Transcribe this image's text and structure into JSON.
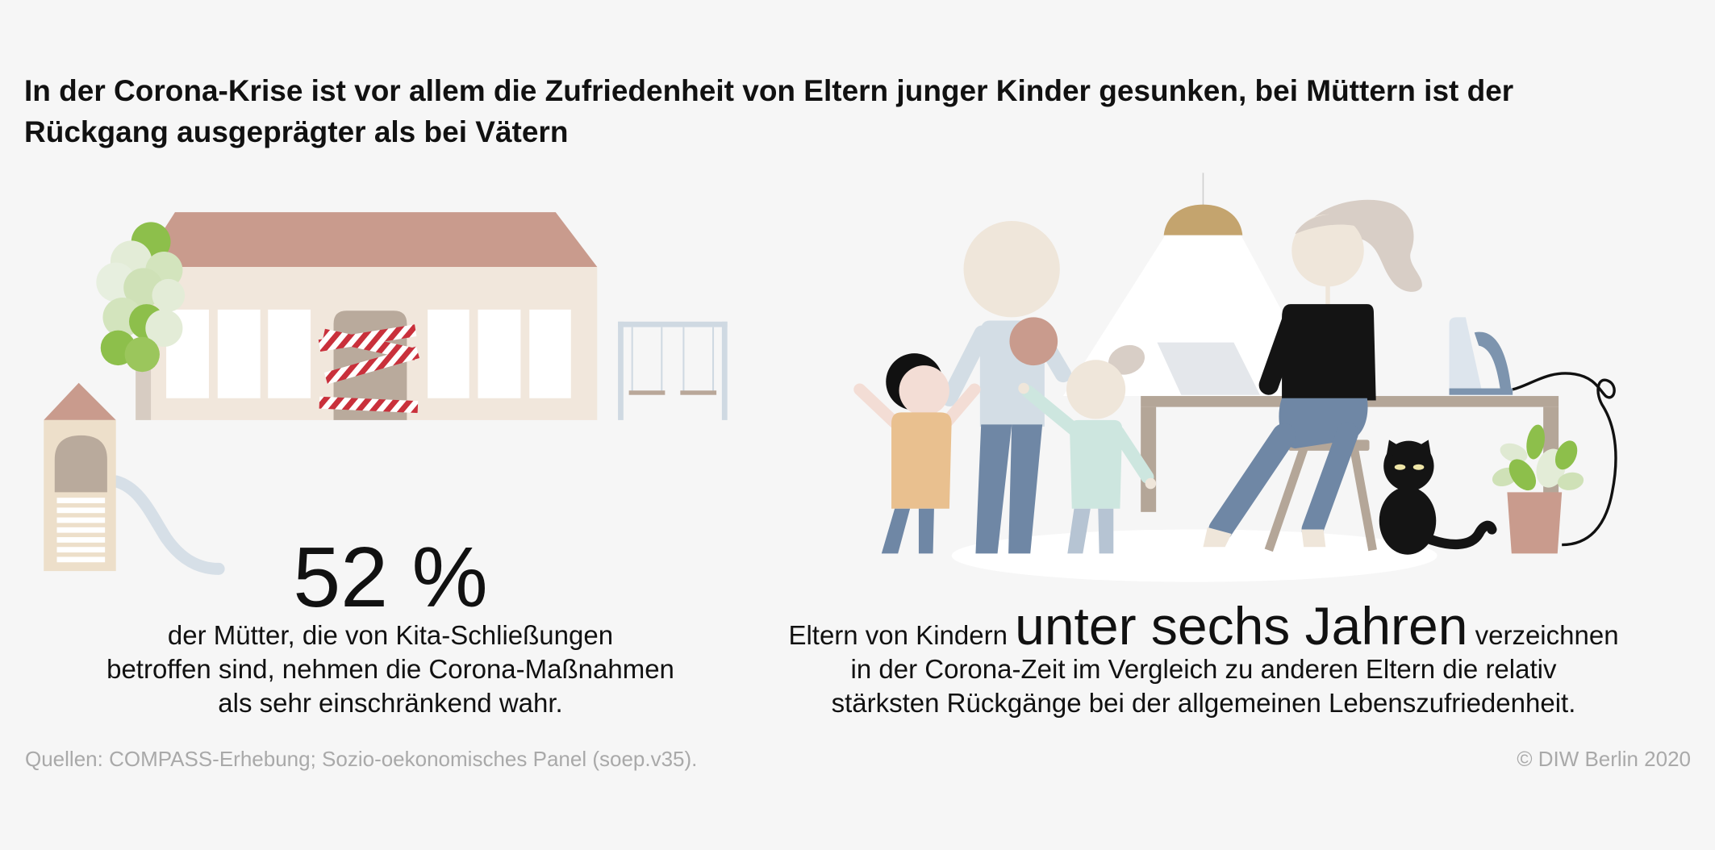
{
  "title": {
    "line1": "In der Corona-Krise ist vor allem die Zufriedenheit von Eltern junger Kinder gesunken, bei Müttern ist der",
    "line2": "Rückgang ausgeprägter als bei Vätern"
  },
  "mothers_stat": {
    "value": "52 %",
    "lines": [
      "der Mütter, die von Kita-Schließungen",
      "betroffen sind, nehmen die Corona-Maßnahmen",
      "als sehr einschränkend wahr."
    ]
  },
  "parents_stat": {
    "line1_before": "Eltern von Kindern",
    "highlight": "unter sechs Jahren",
    "line1_after": "verzeichnen",
    "line2": "in der Corona-Zeit im Vergleich zu anderen Eltern die relativ",
    "line3": "stärksten Rückgänge bei der allgemeinen Lebenszufriedenheit."
  },
  "footer": {
    "source": "Quellen: COMPASS-Erhebung; Sozio-oekonomisches Panel (soep.v35).",
    "copyright": "© DIW Berlin 2020"
  },
  "colors": {
    "background": "#f6f6f6",
    "text": "#111111",
    "muted_text": "#a9a9a9",
    "roof": "#c99b8d",
    "green": "#8dbf4b",
    "caution_red": "#c9303b"
  }
}
